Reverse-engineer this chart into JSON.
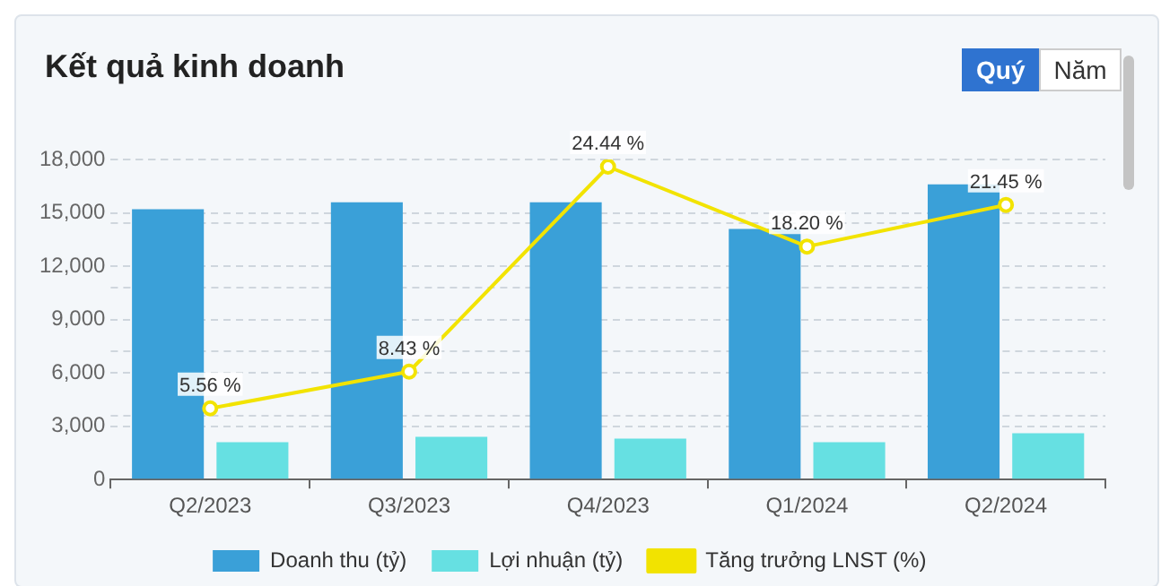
{
  "chart_data": {
    "type": "bar",
    "title": "Kết quả kinh doanh",
    "annotations": [
      "Quý",
      "Năm"
    ],
    "categories": [
      "Q2/2023",
      "Q3/2023",
      "Q4/2023",
      "Q1/2024",
      "Q2/2024"
    ],
    "series": [
      {
        "name": "Doanh thu (tỷ)",
        "color": "#3aa0d8",
        "values": [
          15200,
          15600,
          15600,
          14100,
          16600
        ]
      },
      {
        "name": "Lợi nhuận (tỷ)",
        "color": "#66e0e2",
        "values": [
          2100,
          2400,
          2300,
          2100,
          2600
        ]
      },
      {
        "name": "Tăng trưởng LNST (%)",
        "type": "line",
        "axis": "y2",
        "color": "#f2e300",
        "marker": "circle",
        "values": [
          5.56,
          8.43,
          24.44,
          18.2,
          21.45
        ],
        "value_labels": [
          "5.56 %",
          "8.43 %",
          "24.44 %",
          "18.20 %",
          "21.45 %"
        ]
      }
    ],
    "ylim": [
      0,
      18000
    ],
    "yticks": [
      {
        "value": 0,
        "label": "0"
      },
      {
        "value": 3000,
        "label": "3,000"
      },
      {
        "value": 6000,
        "label": "6,000"
      },
      {
        "value": 9000,
        "label": "9,000"
      },
      {
        "value": 12000,
        "label": "12,000"
      },
      {
        "value": 15000,
        "label": "15,000"
      },
      {
        "value": 18000,
        "label": "18,000"
      }
    ],
    "y2lim": [
      0,
      25
    ],
    "y2ticks": [
      {
        "value": 0,
        "label": null
      },
      {
        "value": 5,
        "label": null
      },
      {
        "value": 10,
        "label": null
      },
      {
        "value": 15,
        "label": null
      },
      {
        "value": 20,
        "label": null
      },
      {
        "value": 25,
        "label": null
      }
    ],
    "grid": "y",
    "legend": "bottom"
  }
}
